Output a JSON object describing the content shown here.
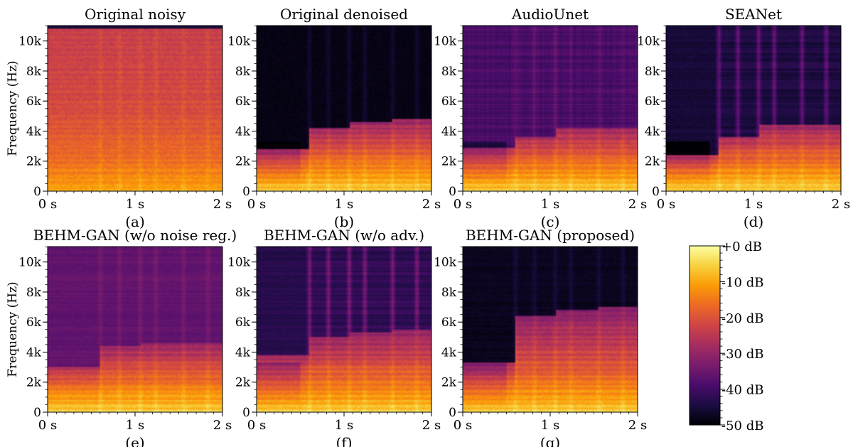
{
  "chart_data": {
    "type": "heatmap",
    "panels": [
      {
        "title": "Original noisy",
        "label": "(a)",
        "ylabel": "Frequency (Hz)",
        "profile": "noisy"
      },
      {
        "title": "Original denoised",
        "label": "(b)",
        "ylabel": "",
        "profile": "denoised"
      },
      {
        "title": "AudioUnet",
        "label": "(c)",
        "ylabel": "",
        "profile": "audiounet"
      },
      {
        "title": "SEANet",
        "label": "(d)",
        "ylabel": "",
        "profile": "seanet"
      },
      {
        "title": "BEHM-GAN (w/o noise reg.)",
        "label": "(e)",
        "ylabel": "Frequency (Hz)",
        "profile": "nonoise"
      },
      {
        "title": "BEHM-GAN (w/o adv.)",
        "label": "(f)",
        "ylabel": "",
        "profile": "noadv"
      },
      {
        "title": "BEHM-GAN (proposed)",
        "label": "(g)",
        "ylabel": "",
        "profile": "proposed"
      }
    ],
    "x_ticks": [
      "0 s",
      "1 s",
      "2 s"
    ],
    "x_tick_values": [
      0,
      1,
      2
    ],
    "xlim": [
      0,
      2
    ],
    "y_ticks": [
      "0",
      "2k",
      "4k",
      "6k",
      "8k",
      "10k"
    ],
    "y_tick_values": [
      0,
      2000,
      4000,
      6000,
      8000,
      10000
    ],
    "ylim": [
      0,
      11025
    ],
    "colorbar": {
      "ticks": [
        "+0 dB",
        "-10 dB",
        "-20 dB",
        "-30 dB",
        "-40 dB",
        "-50 dB"
      ],
      "tick_values": [
        0,
        -10,
        -20,
        -30,
        -40,
        -50
      ],
      "range": [
        -50,
        0
      ],
      "colormap": "inferno",
      "colors": [
        "#000004",
        "#1b0c41",
        "#4a0c6b",
        "#781c6d",
        "#a52c60",
        "#cf4446",
        "#ed6925",
        "#fb9b06",
        "#f7d13d",
        "#fcffa4"
      ]
    }
  }
}
